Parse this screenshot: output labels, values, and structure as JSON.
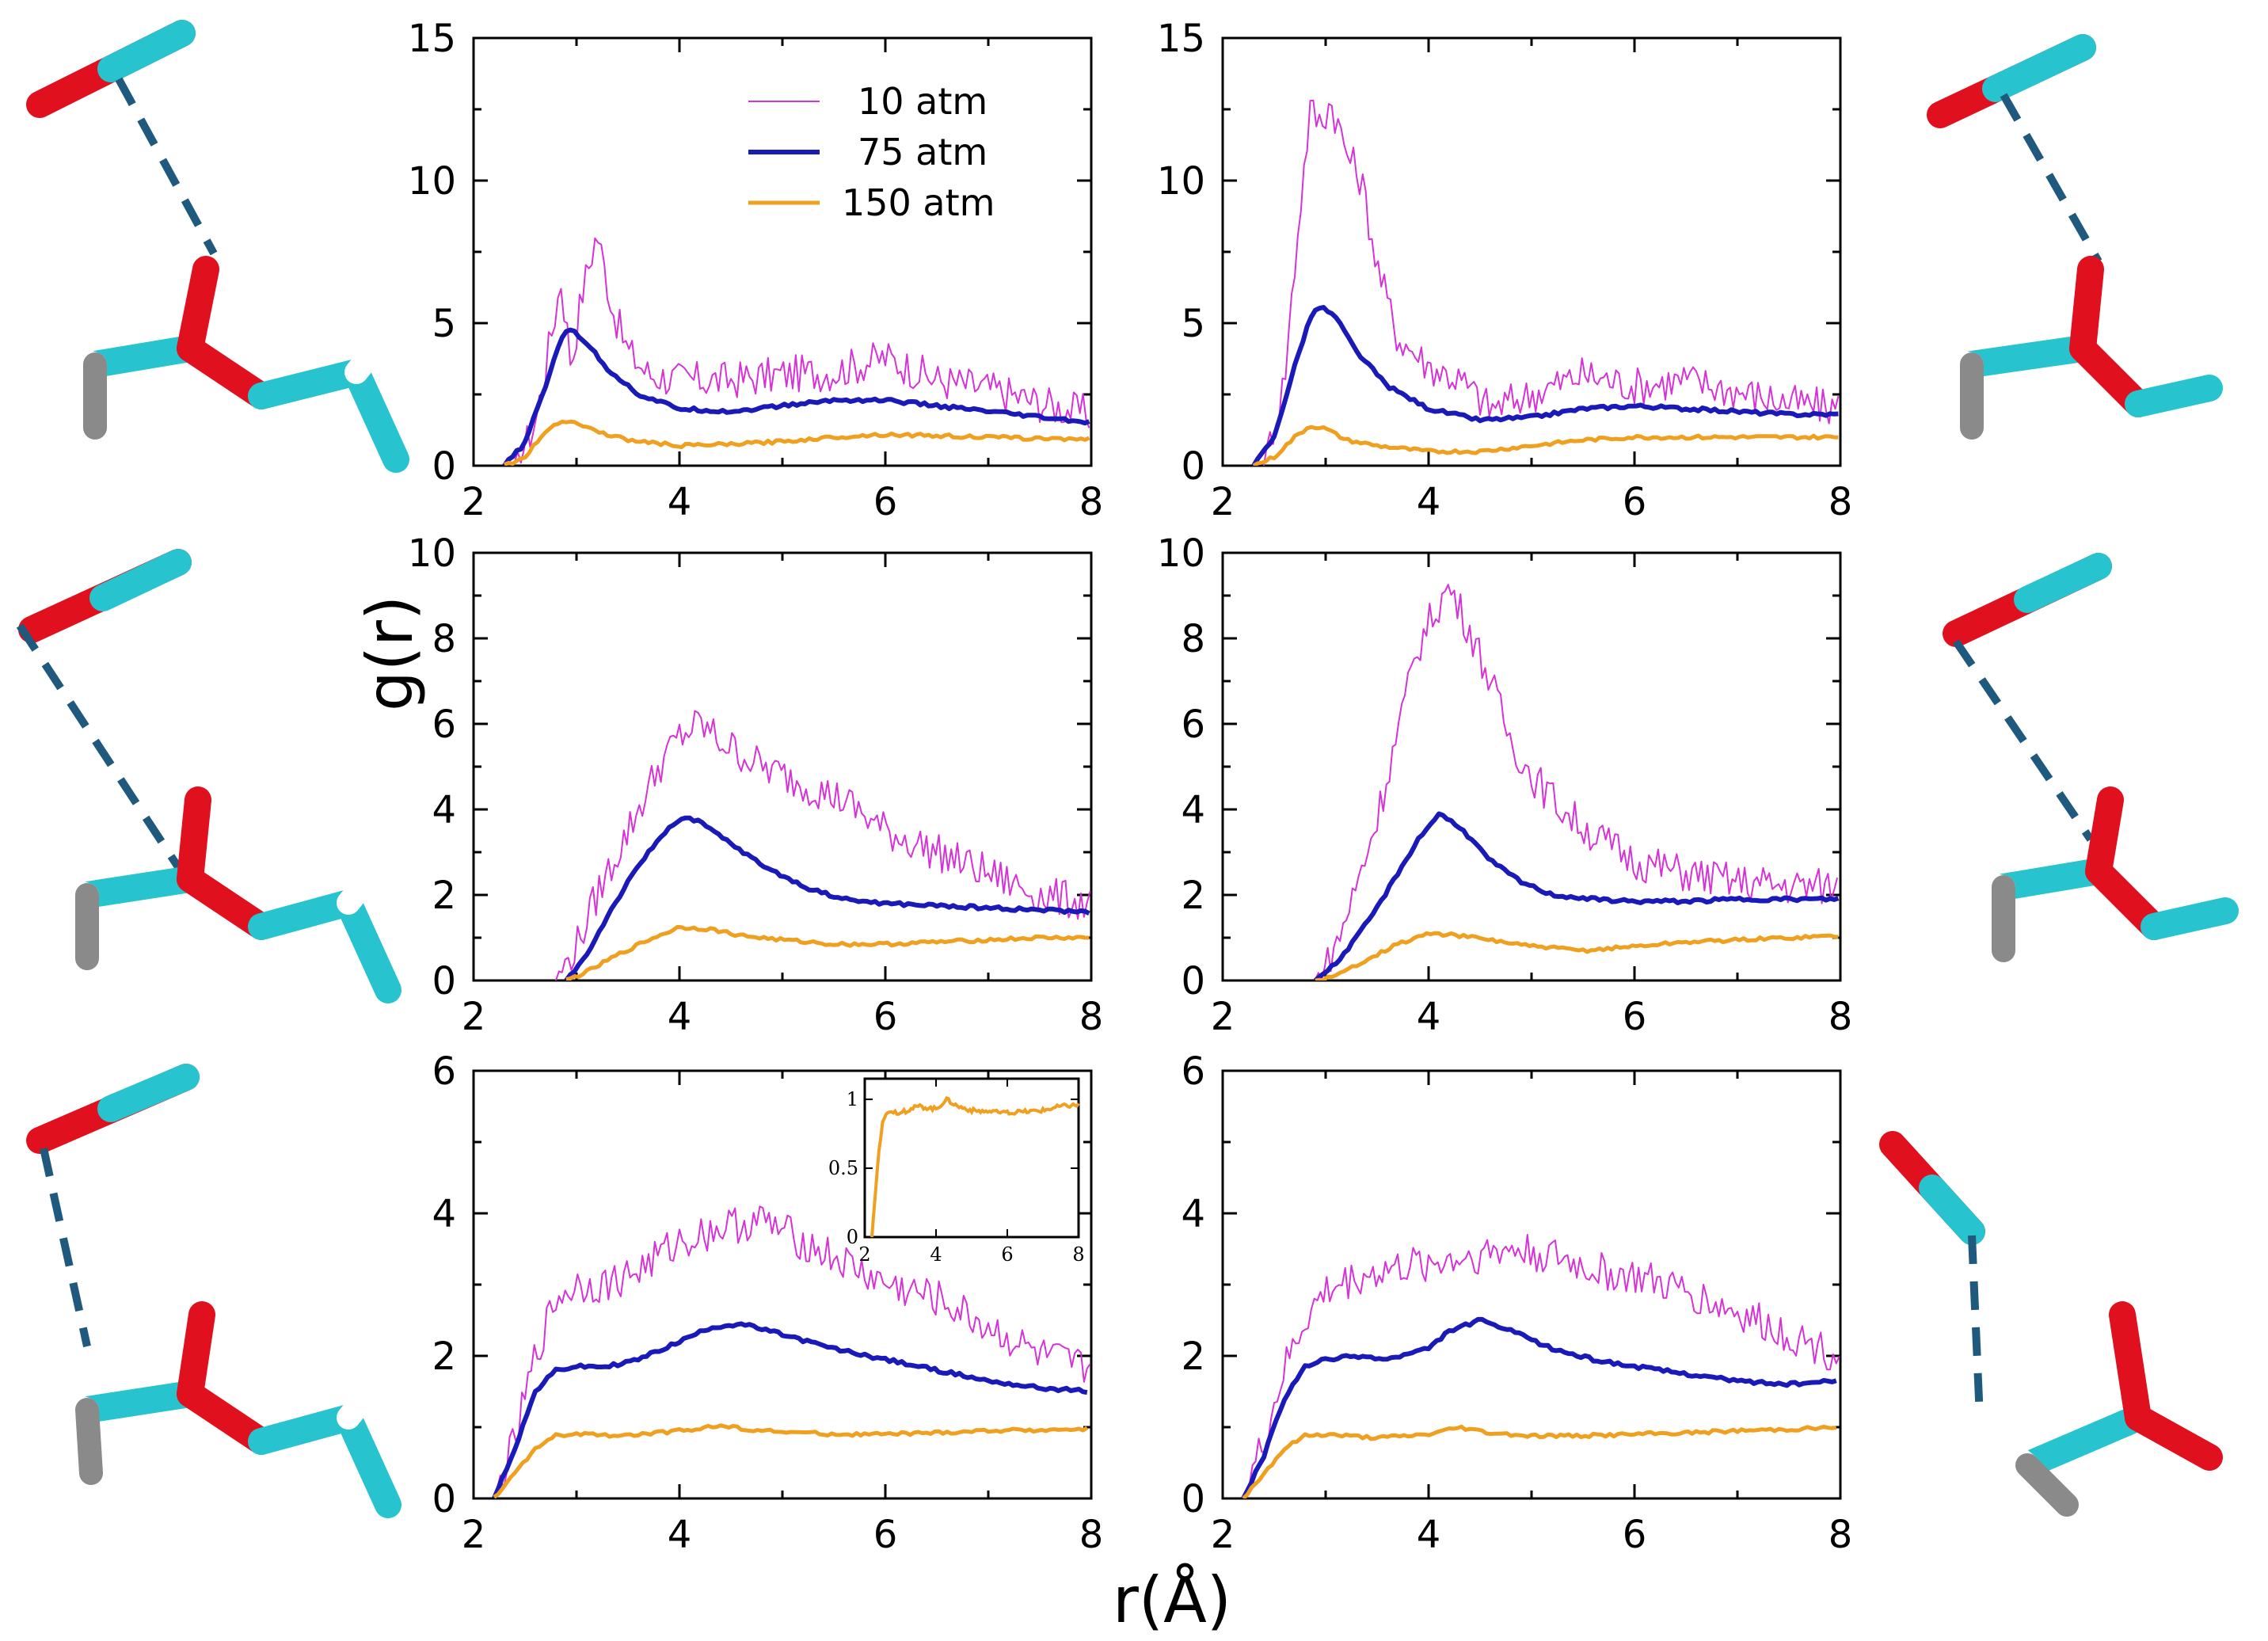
{
  "figure": {
    "xlabel": "r(Å)",
    "ylabel": "g(r)",
    "legend": {
      "placement": "top-right of first panel",
      "entries": [
        {
          "name": "10 atm",
          "color": "#d633d6"
        },
        {
          "name": "75 atm",
          "color": "#1a1ab8"
        },
        {
          "name": "150 atm",
          "color": "#f0a020"
        }
      ]
    },
    "molecule_colors": {
      "carbon": "#27c4cf",
      "oxygen": "#e0101e",
      "hydrogen": "#ffffff",
      "hydrogen_back": "#8a8a8a",
      "bond_line": "#1f5a7e"
    }
  },
  "chart_data": [
    {
      "type": "line",
      "id": "panel-1",
      "xlim": [
        2,
        8
      ],
      "ylim": [
        0,
        15
      ],
      "xticks": [
        "2",
        "4",
        "6",
        "8"
      ],
      "yticks": [
        "0",
        "5",
        "10",
        "15"
      ],
      "series": [
        {
          "name": "10 atm",
          "x": [
            2.4,
            2.6,
            2.75,
            2.85,
            2.95,
            3.05,
            3.2,
            3.35,
            3.5,
            3.7,
            4.0,
            4.5,
            5.0,
            5.5,
            6.0,
            6.5,
            7.0,
            7.5,
            8.0
          ],
          "y": [
            0,
            1.5,
            4.5,
            6.5,
            3.5,
            6.0,
            8.2,
            5.5,
            4.0,
            3.2,
            3.0,
            3.0,
            3.2,
            3.3,
            3.8,
            3.0,
            2.7,
            2.2,
            1.8
          ]
        },
        {
          "name": "75 atm",
          "x": [
            2.3,
            2.5,
            2.7,
            2.85,
            2.95,
            3.1,
            3.3,
            3.6,
            4.0,
            4.5,
            5.0,
            5.5,
            6.0,
            6.5,
            7.0,
            7.5,
            8.0
          ],
          "y": [
            0,
            0.8,
            2.8,
            4.5,
            4.8,
            4.3,
            3.4,
            2.5,
            2.0,
            1.9,
            2.1,
            2.3,
            2.3,
            2.1,
            1.9,
            1.7,
            1.5
          ]
        },
        {
          "name": "150 atm",
          "x": [
            2.3,
            2.5,
            2.7,
            2.85,
            3.0,
            3.2,
            3.5,
            4.0,
            4.5,
            5.0,
            5.5,
            6.0,
            6.5,
            7.0,
            7.5,
            8.0
          ],
          "y": [
            0,
            0.3,
            1.2,
            1.6,
            1.5,
            1.2,
            0.9,
            0.7,
            0.75,
            0.85,
            1.0,
            1.1,
            1.05,
            1.0,
            0.95,
            0.95
          ]
        }
      ]
    },
    {
      "type": "line",
      "id": "panel-2",
      "xlim": [
        2,
        8
      ],
      "ylim": [
        0,
        15
      ],
      "xticks": [
        "2",
        "4",
        "6",
        "8"
      ],
      "yticks": [
        "0",
        "5",
        "10",
        "15"
      ],
      "series": [
        {
          "name": "10 atm",
          "x": [
            2.4,
            2.6,
            2.75,
            2.85,
            2.95,
            3.05,
            3.2,
            3.35,
            3.5,
            3.7,
            4.0,
            4.3,
            4.6,
            5.0,
            5.5,
            6.0,
            6.5,
            7.0,
            7.5,
            8.0
          ],
          "y": [
            0,
            3.0,
            9.0,
            12.5,
            12.0,
            12.8,
            11.0,
            10.0,
            7.0,
            4.5,
            3.5,
            3.0,
            2.0,
            2.5,
            3.2,
            2.8,
            3.0,
            2.6,
            2.2,
            2.0
          ]
        },
        {
          "name": "75 atm",
          "x": [
            2.3,
            2.5,
            2.7,
            2.85,
            2.95,
            3.1,
            3.3,
            3.6,
            4.0,
            4.5,
            5.0,
            5.5,
            6.0,
            6.5,
            7.0,
            7.5,
            8.0
          ],
          "y": [
            0,
            1.0,
            3.5,
            5.2,
            5.6,
            5.2,
            4.0,
            2.8,
            2.0,
            1.6,
            1.7,
            2.0,
            2.1,
            2.0,
            1.9,
            1.8,
            1.8
          ]
        },
        {
          "name": "150 atm",
          "x": [
            2.3,
            2.5,
            2.7,
            2.85,
            3.0,
            3.2,
            3.5,
            4.0,
            4.5,
            5.0,
            5.5,
            6.0,
            6.5,
            7.0,
            7.5,
            8.0
          ],
          "y": [
            0,
            0.3,
            1.0,
            1.4,
            1.3,
            0.9,
            0.7,
            0.5,
            0.5,
            0.7,
            0.9,
            1.0,
            1.0,
            1.0,
            1.0,
            1.0
          ]
        }
      ]
    },
    {
      "type": "line",
      "id": "panel-3",
      "xlim": [
        2,
        8
      ],
      "ylim": [
        0,
        10
      ],
      "xticks": [
        "2",
        "4",
        "6",
        "8"
      ],
      "yticks": [
        "0",
        "2",
        "4",
        "6",
        "8",
        "10"
      ],
      "series": [
        {
          "name": "10 atm",
          "x": [
            2.8,
            3.0,
            3.2,
            3.4,
            3.6,
            3.8,
            4.0,
            4.2,
            4.4,
            4.6,
            4.8,
            5.0,
            5.3,
            5.6,
            6.0,
            6.5,
            7.0,
            7.5,
            8.0
          ],
          "y": [
            0,
            0.8,
            2.0,
            3.0,
            4.0,
            5.0,
            5.7,
            6.0,
            5.6,
            5.3,
            5.0,
            4.8,
            4.5,
            4.2,
            3.5,
            3.0,
            2.5,
            2.0,
            1.8
          ]
        },
        {
          "name": "75 atm",
          "x": [
            2.9,
            3.1,
            3.3,
            3.5,
            3.7,
            3.9,
            4.05,
            4.2,
            4.5,
            4.8,
            5.2,
            5.6,
            6.0,
            6.5,
            7.0,
            7.5,
            8.0
          ],
          "y": [
            0,
            0.6,
            1.5,
            2.3,
            3.0,
            3.6,
            3.8,
            3.7,
            3.2,
            2.7,
            2.2,
            1.9,
            1.8,
            1.75,
            1.7,
            1.65,
            1.6
          ]
        },
        {
          "name": "150 atm",
          "x": [
            2.9,
            3.1,
            3.4,
            3.7,
            4.0,
            4.3,
            4.6,
            5.0,
            5.5,
            6.0,
            6.5,
            7.0,
            7.5,
            8.0
          ],
          "y": [
            0,
            0.2,
            0.6,
            0.95,
            1.25,
            1.2,
            1.05,
            0.95,
            0.85,
            0.85,
            0.9,
            0.95,
            1.0,
            1.0
          ]
        }
      ]
    },
    {
      "type": "line",
      "id": "panel-4",
      "xlim": [
        2,
        8
      ],
      "ylim": [
        0,
        10
      ],
      "xticks": [
        "2",
        "4",
        "6",
        "8"
      ],
      "yticks": [
        "0",
        "2",
        "4",
        "6",
        "8",
        "10"
      ],
      "series": [
        {
          "name": "10 atm",
          "x": [
            2.9,
            3.1,
            3.3,
            3.5,
            3.7,
            3.9,
            4.05,
            4.2,
            4.4,
            4.6,
            4.8,
            5.0,
            5.3,
            5.6,
            6.0,
            6.5,
            7.0,
            7.5,
            8.0
          ],
          "y": [
            0,
            0.8,
            2.2,
            3.8,
            5.8,
            7.8,
            8.6,
            9.2,
            8.2,
            7.0,
            5.6,
            4.8,
            4.0,
            3.4,
            2.8,
            2.5,
            2.3,
            2.2,
            2.2
          ]
        },
        {
          "name": "75 atm",
          "x": [
            2.9,
            3.1,
            3.3,
            3.5,
            3.7,
            3.9,
            4.1,
            4.3,
            4.6,
            4.9,
            5.2,
            5.6,
            6.0,
            6.5,
            7.0,
            7.5,
            8.0
          ],
          "y": [
            0,
            0.4,
            1.0,
            1.7,
            2.5,
            3.3,
            3.9,
            3.6,
            2.8,
            2.3,
            2.0,
            1.9,
            1.85,
            1.85,
            1.9,
            1.9,
            1.9
          ]
        },
        {
          "name": "150 atm",
          "x": [
            2.9,
            3.1,
            3.4,
            3.7,
            4.0,
            4.3,
            4.6,
            5.0,
            5.5,
            6.0,
            6.5,
            7.0,
            7.5,
            8.0
          ],
          "y": [
            0,
            0.1,
            0.5,
            0.85,
            1.1,
            1.05,
            0.95,
            0.8,
            0.7,
            0.8,
            0.9,
            0.95,
            1.0,
            1.05
          ]
        }
      ]
    },
    {
      "type": "line",
      "id": "panel-5",
      "xlim": [
        2,
        8
      ],
      "ylim": [
        0,
        6
      ],
      "xticks": [
        "2",
        "4",
        "6",
        "8"
      ],
      "yticks": [
        "0",
        "2",
        "4",
        "6"
      ],
      "inset": {
        "xlim": [
          2,
          8
        ],
        "ylim": [
          0,
          1.15
        ],
        "xticks": [
          "2",
          "4",
          "6",
          "8"
        ],
        "yticks": [
          "0",
          "0.5",
          "1"
        ],
        "series": [
          {
            "name": "150 atm",
            "x": [
              2.2,
              2.35,
              2.5,
              2.7,
              3.0,
              3.5,
              4.0,
              4.3,
              4.6,
              5.0,
              6.0,
              7.0,
              7.5,
              8.0
            ],
            "y": [
              0,
              0.5,
              0.85,
              0.92,
              0.9,
              0.95,
              0.93,
              1.0,
              0.95,
              0.92,
              0.9,
              0.92,
              0.95,
              0.96
            ]
          }
        ]
      },
      "series": [
        {
          "name": "10 atm",
          "x": [
            2.2,
            2.4,
            2.6,
            2.8,
            3.0,
            3.3,
            3.6,
            4.0,
            4.4,
            4.8,
            5.2,
            5.6,
            6.0,
            6.5,
            7.0,
            7.5,
            8.0
          ],
          "y": [
            0,
            0.8,
            2.0,
            2.8,
            3.0,
            3.0,
            3.2,
            3.6,
            3.8,
            3.9,
            3.6,
            3.3,
            3.0,
            2.8,
            2.4,
            2.0,
            1.8
          ]
        },
        {
          "name": "75 atm",
          "x": [
            2.2,
            2.4,
            2.6,
            2.8,
            3.0,
            3.3,
            3.6,
            4.0,
            4.3,
            4.6,
            5.0,
            5.5,
            6.0,
            6.5,
            7.0,
            7.5,
            8.0
          ],
          "y": [
            0,
            0.7,
            1.5,
            1.8,
            1.85,
            1.85,
            1.95,
            2.2,
            2.4,
            2.45,
            2.3,
            2.1,
            1.95,
            1.8,
            1.65,
            1.55,
            1.5
          ]
        },
        {
          "name": "150 atm",
          "x": [
            2.2,
            2.4,
            2.6,
            2.8,
            3.0,
            3.5,
            4.0,
            4.4,
            4.8,
            5.5,
            6.0,
            6.5,
            7.0,
            7.5,
            8.0
          ],
          "y": [
            0,
            0.35,
            0.7,
            0.88,
            0.9,
            0.88,
            0.95,
            1.02,
            0.95,
            0.9,
            0.9,
            0.92,
            0.95,
            0.96,
            0.97
          ]
        }
      ]
    },
    {
      "type": "line",
      "id": "panel-6",
      "xlim": [
        2,
        8
      ],
      "ylim": [
        0,
        6
      ],
      "xticks": [
        "2",
        "4",
        "6",
        "8"
      ],
      "yticks": [
        "0",
        "2",
        "4",
        "6"
      ],
      "series": [
        {
          "name": "10 atm",
          "x": [
            2.2,
            2.4,
            2.6,
            2.8,
            3.0,
            3.3,
            3.6,
            4.0,
            4.4,
            4.8,
            5.2,
            5.6,
            6.0,
            6.5,
            7.0,
            7.5,
            8.0
          ],
          "y": [
            0,
            0.8,
            1.8,
            2.5,
            2.9,
            3.1,
            3.2,
            3.3,
            3.4,
            3.5,
            3.4,
            3.2,
            3.1,
            2.9,
            2.6,
            2.3,
            2.0
          ]
        },
        {
          "name": "75 atm",
          "x": [
            2.2,
            2.4,
            2.6,
            2.8,
            3.0,
            3.3,
            3.6,
            4.0,
            4.2,
            4.5,
            4.8,
            5.2,
            5.6,
            6.0,
            6.5,
            7.0,
            7.5,
            8.0
          ],
          "y": [
            0,
            0.6,
            1.4,
            1.85,
            1.95,
            2.0,
            1.95,
            2.1,
            2.35,
            2.5,
            2.35,
            2.1,
            1.95,
            1.85,
            1.75,
            1.65,
            1.6,
            1.65
          ]
        },
        {
          "name": "150 atm",
          "x": [
            2.2,
            2.4,
            2.6,
            2.8,
            3.0,
            3.5,
            4.0,
            4.3,
            4.6,
            5.0,
            5.5,
            6.0,
            6.5,
            7.0,
            7.5,
            8.0
          ],
          "y": [
            0,
            0.35,
            0.7,
            0.88,
            0.9,
            0.85,
            0.9,
            1.0,
            0.92,
            0.88,
            0.88,
            0.9,
            0.92,
            0.95,
            0.97,
            1.0
          ]
        }
      ]
    }
  ]
}
